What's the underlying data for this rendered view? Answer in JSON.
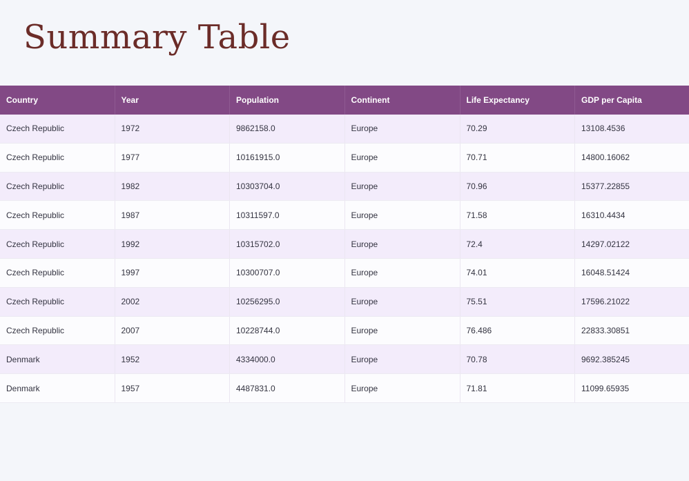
{
  "page": {
    "title": "Summary Table"
  },
  "table": {
    "columns": [
      "Country",
      "Year",
      "Population",
      "Continent",
      "Life Expectancy",
      "GDP per Capita"
    ],
    "rows": [
      [
        "Czech Republic",
        "1972",
        "9862158.0",
        "Europe",
        "70.29",
        "13108.4536"
      ],
      [
        "Czech Republic",
        "1977",
        "10161915.0",
        "Europe",
        "70.71",
        "14800.16062"
      ],
      [
        "Czech Republic",
        "1982",
        "10303704.0",
        "Europe",
        "70.96",
        "15377.22855"
      ],
      [
        "Czech Republic",
        "1987",
        "10311597.0",
        "Europe",
        "71.58",
        "16310.4434"
      ],
      [
        "Czech Republic",
        "1992",
        "10315702.0",
        "Europe",
        "72.4",
        "14297.02122"
      ],
      [
        "Czech Republic",
        "1997",
        "10300707.0",
        "Europe",
        "74.01",
        "16048.51424"
      ],
      [
        "Czech Republic",
        "2002",
        "10256295.0",
        "Europe",
        "75.51",
        "17596.21022"
      ],
      [
        "Czech Republic",
        "2007",
        "10228744.0",
        "Europe",
        "76.486",
        "22833.30851"
      ],
      [
        "Denmark",
        "1952",
        "4334000.0",
        "Europe",
        "70.78",
        "9692.385245"
      ],
      [
        "Denmark",
        "1957",
        "4487831.0",
        "Europe",
        "71.81",
        "11099.65935"
      ]
    ]
  },
  "colors": {
    "title": "#6b2c28",
    "header_bg": "#824985",
    "odd_row_bg": "#f3ecfb",
    "even_row_bg": "#fcfcfe",
    "page_bg": "#f4f6fa"
  }
}
